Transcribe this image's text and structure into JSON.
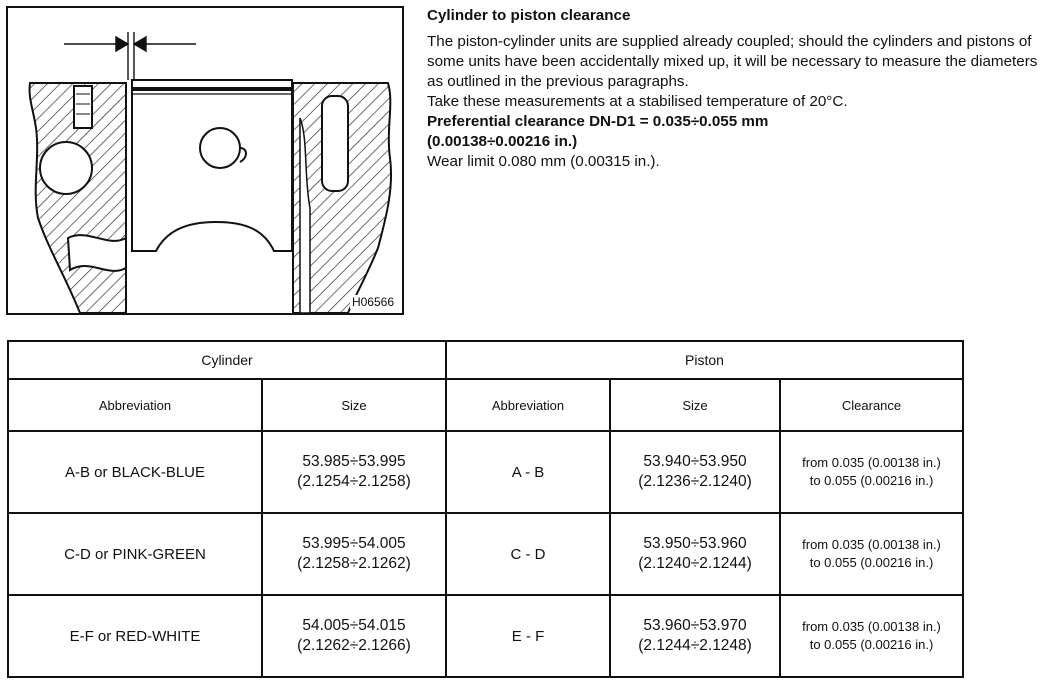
{
  "figure": {
    "code": "H06566",
    "icons": [
      "clearance-arrows-icon",
      "piston-cross-section-icon"
    ]
  },
  "text": {
    "heading": "Cylinder to piston clearance",
    "para1": "The piston-cylinder units are supplied already coupled; should the cylinders and pistons of some units have been accidentally mixed up, it will be necessary to measure the diameters as outlined in the previous paragraphs.",
    "para2": "Take these measurements at a stabilised temperature of 20°C.",
    "bold1": "Preferential clearance DN-D1 = 0.035÷0.055 mm",
    "bold2": "(0.00138÷0.00216 in.)",
    "wear": "Wear limit 0.080 mm (0.00315 in.)."
  },
  "table": {
    "group_cylinder": "Cylinder",
    "group_piston": "Piston",
    "headers": {
      "cyl_abbr": "Abbreviation",
      "cyl_size": "Size",
      "pis_abbr": "Abbreviation",
      "pis_size": "Size",
      "clearance": "Clearance"
    },
    "rows": [
      {
        "cyl_abbr": "A-B or BLACK-BLUE",
        "cyl_size_mm": "53.985÷53.995",
        "cyl_size_in": "(2.1254÷2.1258)",
        "pis_abbr": "A - B",
        "pis_size_mm": "53.940÷53.950",
        "pis_size_in": "(2.1236÷2.1240)",
        "clear_1": "from 0.035 (0.00138 in.)",
        "clear_2": "to 0.055 (0.00216 in.)"
      },
      {
        "cyl_abbr": "C-D or PINK-GREEN",
        "cyl_size_mm": "53.995÷54.005",
        "cyl_size_in": "(2.1258÷2.1262)",
        "pis_abbr": "C - D",
        "pis_size_mm": "53.950÷53.960",
        "pis_size_in": "(2.1240÷2.1244)",
        "clear_1": "from 0.035 (0.00138 in.)",
        "clear_2": "to 0.055 (0.00216 in.)"
      },
      {
        "cyl_abbr": "E-F or RED-WHITE",
        "cyl_size_mm": "54.005÷54.015",
        "cyl_size_in": "(2.1262÷2.1266)",
        "pis_abbr": "E - F",
        "pis_size_mm": "53.960÷53.970",
        "pis_size_in": "(2.1244÷2.1248)",
        "clear_1": "from 0.035 (0.00138 in.)",
        "clear_2": "to 0.055 (0.00216 in.)"
      }
    ]
  }
}
